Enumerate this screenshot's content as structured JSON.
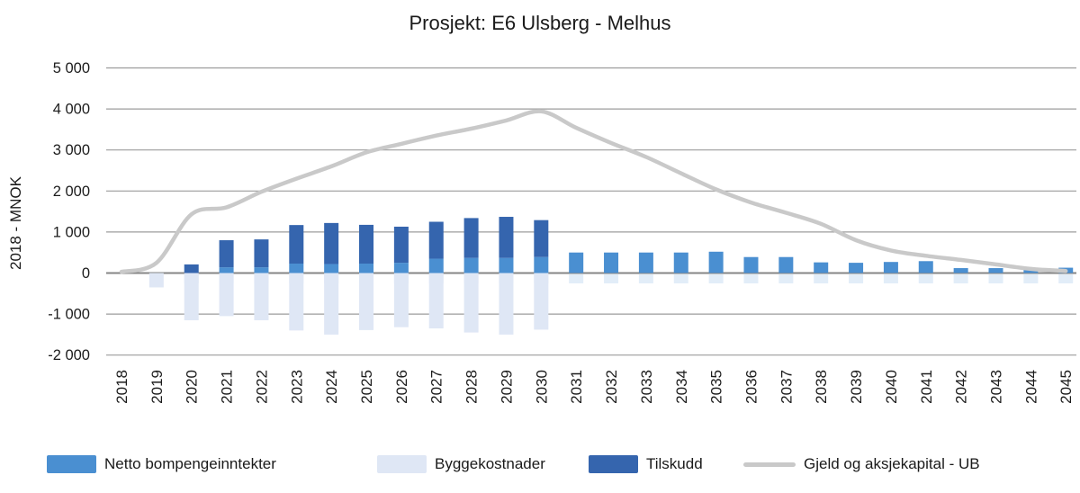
{
  "title": "Prosjekt: E6 Ulsberg - Melhus",
  "y_axis": {
    "label": "2018 - MNOK",
    "tick_labels": [
      "5 000",
      "4 000",
      "3 000",
      "2 000",
      "1 000",
      "0",
      "-1 000",
      "-2 000"
    ]
  },
  "legend": {
    "items": [
      {
        "label": "Netto bompengeinntekter",
        "swatch": "bar",
        "color": "#4a8fd1"
      },
      {
        "label": "Byggekostnader",
        "swatch": "bar",
        "color": "#dfe7f5"
      },
      {
        "label": "Tilskudd",
        "swatch": "bar",
        "color": "#3565ae"
      },
      {
        "label": "Gjeld og aksjekapital - UB",
        "swatch": "line",
        "color": "#c9c9c9"
      }
    ]
  },
  "chart_data": {
    "type": "bar",
    "subtype": "stacked-bars-with-line-overlay",
    "title": "Prosjekt: E6 Ulsberg - Melhus",
    "xlabel": "",
    "ylabel": "2018 - MNOK",
    "ylim": [
      -2000,
      5000
    ],
    "ytick_step": 1000,
    "ytick_labels": [
      "5 000",
      "4 000",
      "3 000",
      "2 000",
      "1 000",
      "0",
      "-1 000",
      "-2 000"
    ],
    "grid": true,
    "legend_position": "bottom",
    "xtick_rotation": 90,
    "categories": [
      "2018",
      "2019",
      "2020",
      "2021",
      "2022",
      "2023",
      "2024",
      "2025",
      "2026",
      "2027",
      "2028",
      "2029",
      "2030",
      "2031",
      "2032",
      "2033",
      "2034",
      "2035",
      "2036",
      "2037",
      "2038",
      "2039",
      "2040",
      "2041",
      "2042",
      "2043",
      "2044",
      "2045"
    ],
    "series": [
      {
        "name": "Netto bompengeinntekter",
        "kind": "bar",
        "stack": "positive",
        "color": "#4a8fd1",
        "values": [
          0,
          0,
          0,
          140,
          140,
          230,
          220,
          230,
          250,
          350,
          370,
          370,
          390,
          500,
          500,
          500,
          500,
          520,
          390,
          390,
          260,
          250,
          270,
          290,
          120,
          120,
          80,
          130
        ]
      },
      {
        "name": "Byggekostnader",
        "kind": "bar",
        "stack": "negative",
        "color": "#dfe7f5",
        "values": [
          0,
          -350,
          -1150,
          -1050,
          -1150,
          -1400,
          -1500,
          -1390,
          -1320,
          -1350,
          -1450,
          -1500,
          -1380,
          0,
          0,
          0,
          0,
          0,
          0,
          0,
          0,
          0,
          0,
          0,
          0,
          0,
          0,
          0
        ]
      },
      {
        "name": "Tilskudd",
        "kind": "bar",
        "stack": "positive",
        "color": "#3565ae",
        "values": [
          0,
          0,
          210,
          660,
          680,
          940,
          1000,
          945,
          880,
          900,
          970,
          1000,
          900,
          0,
          0,
          0,
          0,
          0,
          0,
          0,
          0,
          0,
          0,
          0,
          0,
          0,
          0,
          0
        ]
      },
      {
        "name": "Gjeld og aksjekapital - UB",
        "kind": "line",
        "color": "#c9c9c9",
        "values": [
          30,
          250,
          1430,
          1600,
          1980,
          2300,
          2600,
          2940,
          3150,
          3350,
          3520,
          3720,
          3940,
          3540,
          3170,
          2830,
          2430,
          2040,
          1720,
          1470,
          1200,
          800,
          550,
          420,
          320,
          210,
          100,
          50
        ]
      }
    ]
  }
}
